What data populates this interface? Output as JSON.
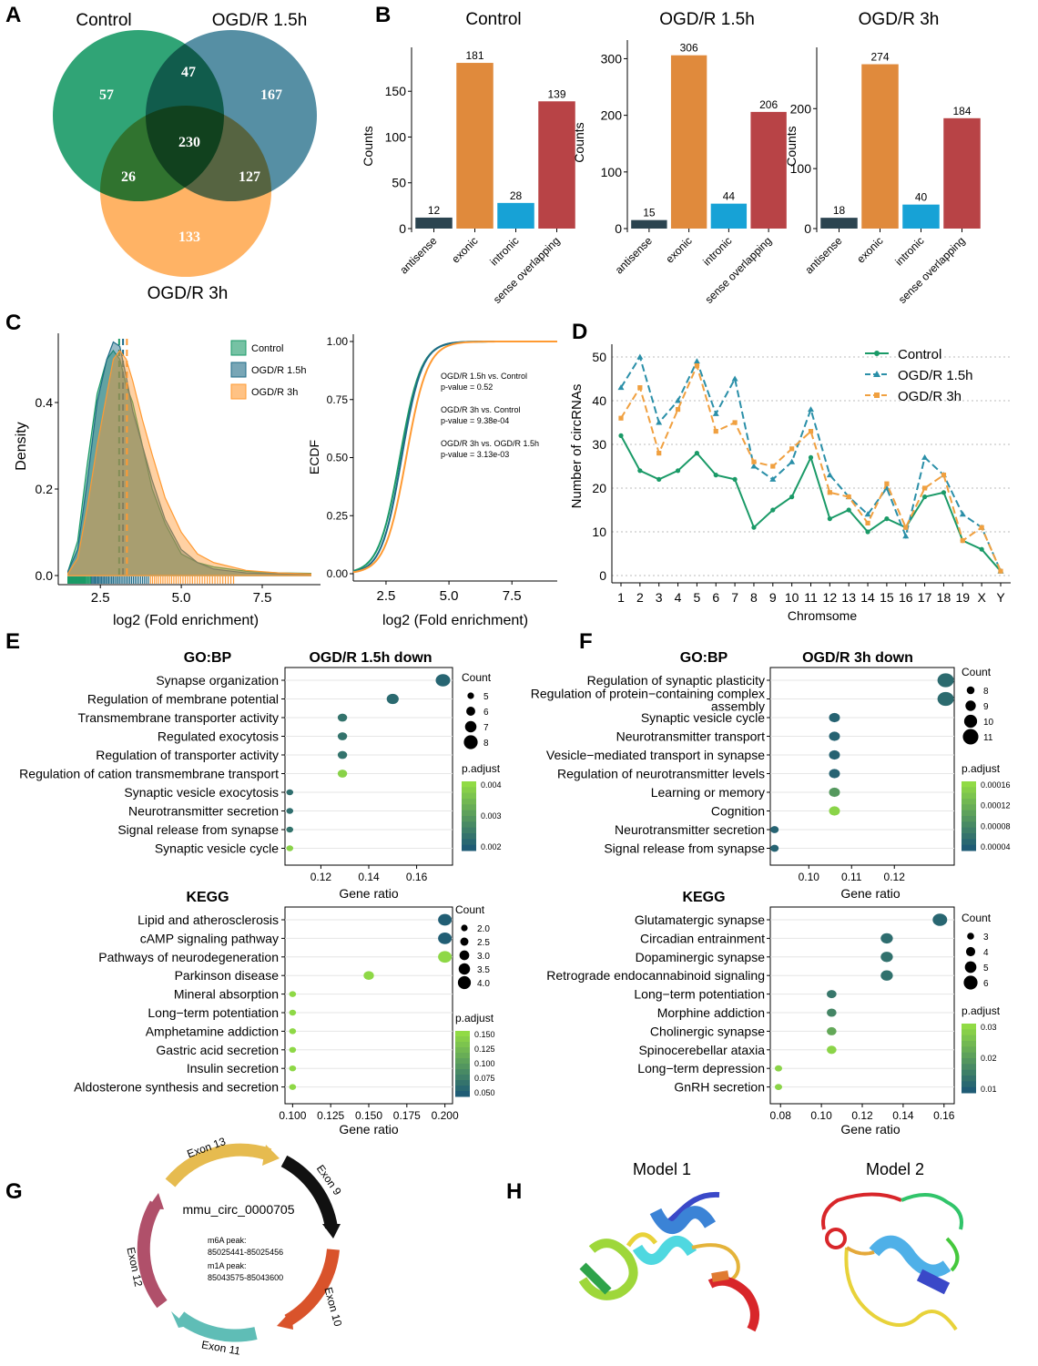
{
  "panel_labels": [
    "A",
    "B",
    "C",
    "D",
    "E",
    "F",
    "G",
    "H"
  ],
  "chart_data": [
    {
      "panel": "A",
      "type": "venn",
      "sets": [
        "Control",
        "OGD/R 1.5h",
        "OGD/R 3h"
      ],
      "colors": [
        "#1a9a67",
        "#1e6a86",
        "#ff9a32"
      ],
      "regions": [
        {
          "id": "control_only",
          "value": 57
        },
        {
          "id": "ogd15_only",
          "value": 167
        },
        {
          "id": "ogd3_only",
          "value": 133
        },
        {
          "id": "control_ogd15",
          "value": 47
        },
        {
          "id": "control_ogd3",
          "value": 26
        },
        {
          "id": "ogd15_ogd3",
          "value": 127
        },
        {
          "id": "all",
          "value": 230
        }
      ]
    },
    {
      "panel": "B",
      "type": "bar",
      "categories": [
        "antisense",
        "exonic",
        "intronic",
        "sense overlapping"
      ],
      "colors": [
        "#2b4450",
        "#e08a3c",
        "#17a2d6",
        "#b84346"
      ],
      "ylabel": "Counts",
      "charts": [
        {
          "title": "Control",
          "values": [
            12,
            181,
            28,
            139
          ],
          "ymax": 190,
          "ticks": [
            0,
            50,
            100,
            150
          ]
        },
        {
          "title": "OGD/R 1.5h",
          "values": [
            15,
            306,
            44,
            206
          ],
          "ymax": 320,
          "ticks": [
            0,
            100,
            200,
            300
          ]
        },
        {
          "title": "OGD/R 3h",
          "values": [
            18,
            274,
            40,
            184
          ],
          "ymax": 290,
          "ticks": [
            0,
            100,
            200
          ]
        }
      ]
    },
    {
      "panel": "C",
      "type": "density+ecdf",
      "xlabel": "log2 (Fold enrichment)",
      "density": {
        "ylabel": "Density",
        "xlim": [
          1.2,
          9.3
        ],
        "ylim": [
          0,
          0.56
        ],
        "xticks": [
          "2.5",
          "5.0",
          "7.5"
        ],
        "yticks": [
          "0.0",
          "0.2",
          "0.4"
        ],
        "legend": [
          "Control",
          "OGD/R 1.5h",
          "OGD/R 3h"
        ],
        "colors": [
          "#1a9a67",
          "#1e6a86",
          "#ff9a32"
        ],
        "medians": [
          3.08,
          3.2,
          3.32
        ],
        "series": [
          {
            "name": "Control",
            "x": [
              1.5,
              1.8,
              2.1,
              2.4,
              2.7,
              2.9,
              3.1,
              3.3,
              3.5,
              3.8,
              4.1,
              4.5,
              5.0,
              5.5,
              6.0,
              7.0,
              8.0,
              9.0
            ],
            "y": [
              0.01,
              0.08,
              0.26,
              0.42,
              0.5,
              0.52,
              0.5,
              0.44,
              0.4,
              0.3,
              0.2,
              0.12,
              0.05,
              0.03,
              0.02,
              0.01,
              0.006,
              0.005
            ]
          },
          {
            "name": "OGD/R 1.5h",
            "x": [
              1.5,
              1.8,
              2.1,
              2.4,
              2.7,
              2.9,
              3.1,
              3.3,
              3.5,
              3.8,
              4.1,
              4.5,
              5.0,
              5.5,
              6.0,
              7.0,
              8.0,
              9.0
            ],
            "y": [
              0.01,
              0.06,
              0.22,
              0.4,
              0.5,
              0.54,
              0.53,
              0.46,
              0.38,
              0.3,
              0.22,
              0.13,
              0.06,
              0.03,
              0.015,
              0.006,
              0.004,
              0.003
            ]
          },
          {
            "name": "OGD/R 3h",
            "x": [
              1.5,
              1.8,
              2.1,
              2.4,
              2.7,
              2.9,
              3.1,
              3.3,
              3.5,
              3.8,
              4.1,
              4.5,
              5.0,
              5.5,
              6.0,
              7.0,
              8.0,
              9.0
            ],
            "y": [
              0.005,
              0.04,
              0.16,
              0.3,
              0.42,
              0.5,
              0.52,
              0.5,
              0.45,
              0.36,
              0.28,
              0.18,
              0.1,
              0.05,
              0.03,
              0.012,
              0.006,
              0.004
            ]
          }
        ]
      },
      "ecdf": {
        "ylabel": "ECDF",
        "yticks": [
          "0.00",
          "0.25",
          "0.50",
          "0.75",
          "1.00"
        ],
        "xticks": [
          "2.5",
          "5.0",
          "7.5"
        ],
        "annotations": [
          "OGD/R 1.5h vs. Control",
          "p-value =  0.52",
          "OGD/R 3h vs. Control",
          "p-value = 9.38e-04",
          "OGD/R 3h vs. OGD/R 1.5h",
          "p-value = 3.13e-03"
        ]
      }
    },
    {
      "panel": "D",
      "type": "line",
      "xlabel": "Chromsome",
      "ylabel": "Number of circRNAs",
      "categories": [
        "1",
        "2",
        "3",
        "4",
        "5",
        "6",
        "7",
        "8",
        "9",
        "10",
        "11",
        "12",
        "13",
        "14",
        "15",
        "16",
        "17",
        "18",
        "19",
        "X",
        "Y"
      ],
      "ylim": [
        0,
        52
      ],
      "yticks": [
        0,
        10,
        20,
        30,
        40,
        50
      ],
      "series": [
        {
          "name": "Control",
          "color": "#1a9a67",
          "style": "solid",
          "values": [
            32,
            24,
            22,
            24,
            28,
            23,
            22,
            11,
            15,
            18,
            27,
            13,
            15,
            10,
            13,
            11,
            18,
            19,
            8,
            6,
            1
          ]
        },
        {
          "name": "OGD/R 1.5h",
          "color": "#2a8fa8",
          "style": "dashed",
          "values": [
            43,
            50,
            35,
            40,
            49,
            37,
            45,
            25,
            22,
            26,
            38,
            23,
            18,
            14,
            20,
            9,
            27,
            23,
            14,
            11,
            1
          ]
        },
        {
          "name": "OGD/R 3h",
          "color": "#f0a040",
          "style": "dashed",
          "values": [
            36,
            43,
            28,
            38,
            48,
            33,
            35,
            26,
            25,
            29,
            33,
            19,
            18,
            12,
            21,
            11,
            20,
            23,
            8,
            11,
            1
          ]
        }
      ]
    },
    {
      "panel": "E",
      "type": "dotplot",
      "title": "OGD/R 1.5h down",
      "xlabel": "Gene ratio",
      "go": {
        "category": "GO:BP",
        "xlim": [
          0.105,
          0.175
        ],
        "xticks": [
          0.12,
          0.14,
          0.16
        ],
        "terms": [
          "Synapse organization",
          "Regulation of membrane potential",
          "Transmembrane transporter activity",
          "Regulated exocytosis",
          "Regulation of transporter activity",
          "Regulation of cation transmembrane transport",
          "Synaptic vesicle exocytosis",
          "Neurotransmitter secretion",
          "Signal release from synapse",
          "Synaptic vesicle cycle"
        ],
        "gene_ratio": [
          0.171,
          0.15,
          0.129,
          0.129,
          0.129,
          0.129,
          0.107,
          0.107,
          0.107,
          0.107
        ],
        "count": [
          8,
          7,
          6,
          6,
          6,
          6,
          5,
          5,
          5,
          5
        ],
        "padjust": [
          0.0015,
          0.0016,
          0.0018,
          0.0018,
          0.0018,
          0.0039,
          0.0017,
          0.0017,
          0.0018,
          0.0039
        ],
        "count_legend": [
          5,
          6,
          7,
          8
        ],
        "padj_legend": [
          "0.004",
          "0.003",
          "0.002"
        ],
        "padj_range": [
          0.0013,
          0.0041
        ]
      },
      "kegg": {
        "category": "KEGG",
        "xlim": [
          0.095,
          0.205
        ],
        "xticks": [
          0.1,
          0.125,
          0.15,
          0.175,
          0.2
        ],
        "xtick_labels": [
          "0.100",
          "0.125",
          "0.150",
          "0.175",
          "0.200"
        ],
        "terms": [
          "Lipid and atherosclerosis",
          "cAMP signaling pathway",
          "Pathways of neurodegeneration",
          "Parkinson disease",
          "Mineral absorption",
          "Long−term potentiation",
          "Amphetamine addiction",
          "Gastric acid secretion",
          "Insulin secretion",
          "Aldosterone synthesis and secretion"
        ],
        "gene_ratio": [
          0.2,
          0.2,
          0.2,
          0.15,
          0.1,
          0.1,
          0.1,
          0.1,
          0.1,
          0.1
        ],
        "count": [
          4,
          4,
          4,
          3,
          2,
          2,
          2,
          2,
          2,
          2
        ],
        "padjust": [
          0.05,
          0.05,
          0.155,
          0.155,
          0.155,
          0.155,
          0.155,
          0.155,
          0.155,
          0.155
        ],
        "count_legend": [
          "2.0",
          "2.5",
          "3.0",
          "3.5",
          "4.0"
        ],
        "padj_legend": [
          "0.150",
          "0.125",
          "0.100",
          "0.075",
          "0.050"
        ],
        "padj_range": [
          0.048,
          0.158
        ]
      }
    },
    {
      "panel": "F",
      "type": "dotplot",
      "title": "OGD/R 3h down",
      "xlabel": "Gene ratio",
      "go": {
        "category": "GO:BP",
        "xlim": [
          0.091,
          0.134
        ],
        "xticks": [
          0.1,
          0.11,
          0.12
        ],
        "xtick_labels": [
          "0.10",
          "0.11",
          "0.12"
        ],
        "terms": [
          "Regulation of synaptic plasticity",
          "Regulation of protein−containing complex assembly",
          "Synaptic vesicle cycle",
          "Neurotransmitter transport",
          "Vesicle−mediated transport in synapse",
          "Regulation of neurotransmitter levels",
          "Learning or memory",
          "Cognition",
          "Neurotransmitter secretion",
          "Signal release from synapse"
        ],
        "gene_ratio": [
          0.132,
          0.132,
          0.106,
          0.106,
          0.106,
          0.106,
          0.106,
          0.106,
          0.092,
          0.092
        ],
        "count": [
          11,
          11,
          9,
          9,
          9,
          9,
          9,
          9,
          8,
          8
        ],
        "padjust": [
          3e-05,
          3e-05,
          2e-05,
          2e-05,
          2e-05,
          2e-05,
          9e-05,
          0.00017,
          2e-05,
          2e-05
        ],
        "count_legend": [
          8,
          9,
          10,
          11
        ],
        "padj_legend": [
          "0.00016",
          "0.00012",
          "0.00008",
          "0.00004"
        ],
        "padj_range": [
          1e-05,
          0.00018
        ]
      },
      "kegg": {
        "category": "KEGG",
        "xlim": [
          0.075,
          0.165
        ],
        "xticks": [
          0.08,
          0.1,
          0.12,
          0.14,
          0.16
        ],
        "xtick_labels": [
          "0.08",
          "0.10",
          "0.12",
          "0.14",
          "0.16"
        ],
        "terms": [
          "Glutamatergic synapse",
          "Circadian entrainment",
          "Dopaminergic synapse",
          "Retrograde endocannabinoid signaling",
          "Long−term potentiation",
          "Morphine addiction",
          "Cholinergic synapse",
          "Spinocerebellar ataxia",
          "Long−term depression",
          "GnRH secretion"
        ],
        "gene_ratio": [
          0.158,
          0.132,
          0.132,
          0.132,
          0.105,
          0.105,
          0.105,
          0.105,
          0.079,
          0.079
        ],
        "count": [
          6,
          5,
          5,
          5,
          4,
          4,
          4,
          4,
          3,
          3
        ],
        "padjust": [
          0.003,
          0.005,
          0.006,
          0.006,
          0.008,
          0.012,
          0.022,
          0.035,
          0.035,
          0.035
        ],
        "count_legend": [
          3,
          4,
          5,
          6
        ],
        "padj_legend": [
          "0.03",
          "0.02",
          "0.01"
        ],
        "padj_range": [
          0.0,
          0.037
        ]
      }
    }
  ],
  "panel_g": {
    "circ_name": "mmu_circ_0000705",
    "m6a_label": "m6A peak:",
    "m6a_range": "85025441-85025456",
    "m1a_label": "m1A peak:",
    "m1a_range": "85043575-85043600",
    "exons": [
      {
        "label": "Exon 13",
        "color": "#e6bb4f"
      },
      {
        "label": "Exon 9",
        "color": "#111111"
      },
      {
        "label": "Exon 10",
        "color": "#d9532b"
      },
      {
        "label": "Exon 11",
        "color": "#5fbdb6"
      },
      {
        "label": "Exon 12",
        "color": "#b0506a"
      }
    ]
  },
  "panel_h": {
    "models": [
      "Model 1",
      "Model 2"
    ]
  }
}
